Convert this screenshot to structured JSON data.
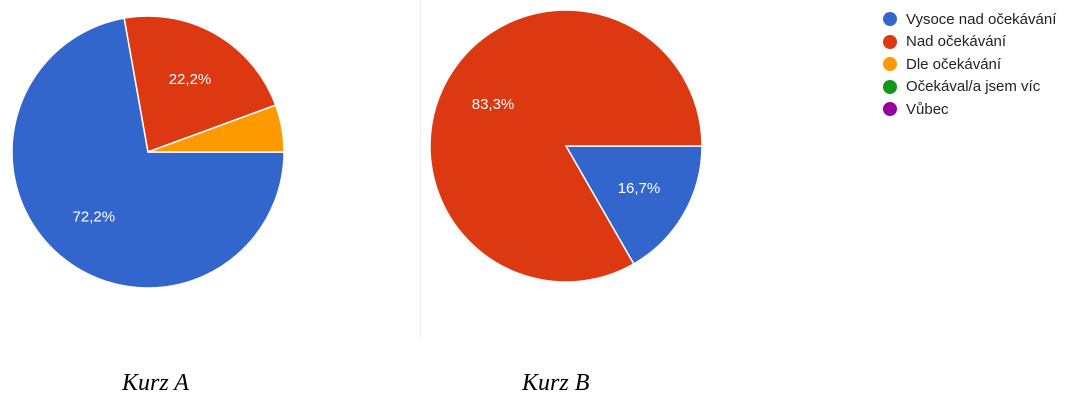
{
  "legend": [
    {
      "label": "Vysoce nad očekávání",
      "color": "#3366cc"
    },
    {
      "label": "Nad očekávání",
      "color": "#dc3912"
    },
    {
      "label": "Dle očekávání",
      "color": "#ff9900"
    },
    {
      "label": "Očekával/a jsem víc",
      "color": "#109618"
    },
    {
      "label": "Vůbec",
      "color": "#990099"
    }
  ],
  "chart_data": [
    {
      "type": "pie",
      "caption": "Kurz A",
      "slices": [
        {
          "category": "Vysoce nad očekávání",
          "value": 72.2,
          "label": "72,2%"
        },
        {
          "category": "Nad očekávání",
          "value": 22.2,
          "label": "22,2%"
        },
        {
          "category": "Dle očekávání",
          "value": 5.6,
          "label": ""
        },
        {
          "category": "Očekával/a jsem víc",
          "value": 0,
          "label": ""
        },
        {
          "category": "Vůbec",
          "value": 0,
          "label": ""
        }
      ]
    },
    {
      "type": "pie",
      "caption": "Kurz B",
      "slices": [
        {
          "category": "Vysoce nad očekávání",
          "value": 16.7,
          "label": "16,7%"
        },
        {
          "category": "Nad očekávání",
          "value": 83.3,
          "label": "83,3%"
        },
        {
          "category": "Dle očekávání",
          "value": 0,
          "label": ""
        },
        {
          "category": "Očekával/a jsem víc",
          "value": 0,
          "label": ""
        },
        {
          "category": "Vůbec",
          "value": 0,
          "label": ""
        }
      ]
    }
  ]
}
